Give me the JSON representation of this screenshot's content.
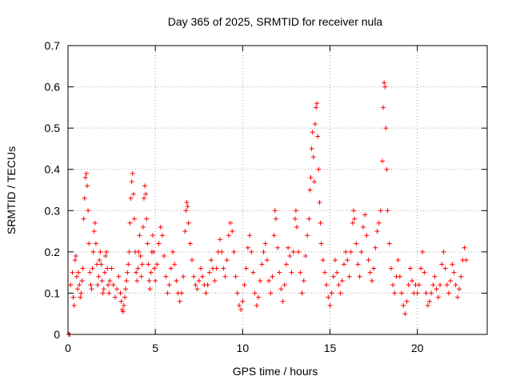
{
  "chart_data": {
    "type": "scatter",
    "title": "Day 365 of 2025, SRMTID for receiver nula",
    "xlabel": "GPS time / hours",
    "ylabel": "SRMTID / TECUs",
    "xlim": [
      0,
      24
    ],
    "ylim": [
      0,
      0.7
    ],
    "xticks": [
      0,
      5,
      10,
      15,
      20
    ],
    "yticks": [
      0,
      0.1,
      0.2,
      0.3,
      0.4,
      0.5,
      0.6,
      0.7
    ],
    "xtick_labels": [
      "0",
      "5",
      "10",
      "15",
      "20"
    ],
    "ytick_labels": [
      "0",
      "0.1",
      "0.2",
      "0.3",
      "0.4",
      "0.5",
      "0.6",
      "0.7"
    ],
    "grid": true,
    "marker": "+",
    "color": "#ff0000",
    "series": [
      {
        "name": "SRMTID",
        "points": [
          [
            0.05,
            0.0
          ],
          [
            0.1,
            0.0
          ],
          [
            0.15,
            0.12
          ],
          [
            0.25,
            0.15
          ],
          [
            0.3,
            0.09
          ],
          [
            0.35,
            0.07
          ],
          [
            0.4,
            0.18
          ],
          [
            0.45,
            0.19
          ],
          [
            0.5,
            0.14
          ],
          [
            0.55,
            0.11
          ],
          [
            0.6,
            0.15
          ],
          [
            0.65,
            0.12
          ],
          [
            0.7,
            0.09
          ],
          [
            0.75,
            0.1
          ],
          [
            0.8,
            0.13
          ],
          [
            0.85,
            0.16
          ],
          [
            0.9,
            0.28
          ],
          [
            0.95,
            0.33
          ],
          [
            1.0,
            0.38
          ],
          [
            1.05,
            0.39
          ],
          [
            1.1,
            0.36
          ],
          [
            1.15,
            0.3
          ],
          [
            1.2,
            0.22
          ],
          [
            1.25,
            0.15
          ],
          [
            1.3,
            0.12
          ],
          [
            1.35,
            0.11
          ],
          [
            1.4,
            0.16
          ],
          [
            1.45,
            0.2
          ],
          [
            1.5,
            0.25
          ],
          [
            1.55,
            0.27
          ],
          [
            1.6,
            0.22
          ],
          [
            1.65,
            0.17
          ],
          [
            1.7,
            0.12
          ],
          [
            1.75,
            0.14
          ],
          [
            1.8,
            0.18
          ],
          [
            1.85,
            0.2
          ],
          [
            1.9,
            0.17
          ],
          [
            1.95,
            0.13
          ],
          [
            2.0,
            0.1
          ],
          [
            2.05,
            0.11
          ],
          [
            2.1,
            0.15
          ],
          [
            2.15,
            0.19
          ],
          [
            2.2,
            0.2
          ],
          [
            2.25,
            0.16
          ],
          [
            2.3,
            0.12
          ],
          [
            2.35,
            0.1
          ],
          [
            2.4,
            0.13
          ],
          [
            2.5,
            0.16
          ],
          [
            2.6,
            0.12
          ],
          [
            2.7,
            0.09
          ],
          [
            2.8,
            0.11
          ],
          [
            2.9,
            0.14
          ],
          [
            3.0,
            0.1
          ],
          [
            3.05,
            0.08
          ],
          [
            3.1,
            0.06
          ],
          [
            3.15,
            0.055
          ],
          [
            3.2,
            0.07
          ],
          [
            3.25,
            0.09
          ],
          [
            3.3,
            0.11
          ],
          [
            3.35,
            0.13
          ],
          [
            3.4,
            0.15
          ],
          [
            3.45,
            0.17
          ],
          [
            3.5,
            0.2
          ],
          [
            3.55,
            0.27
          ],
          [
            3.6,
            0.33
          ],
          [
            3.65,
            0.37
          ],
          [
            3.7,
            0.39
          ],
          [
            3.75,
            0.34
          ],
          [
            3.8,
            0.28
          ],
          [
            3.85,
            0.2
          ],
          [
            3.9,
            0.15
          ],
          [
            3.95,
            0.13
          ],
          [
            4.0,
            0.16
          ],
          [
            4.05,
            0.2
          ],
          [
            4.1,
            0.24
          ],
          [
            4.15,
            0.19
          ],
          [
            4.2,
            0.14
          ],
          [
            4.25,
            0.17
          ],
          [
            4.3,
            0.26
          ],
          [
            4.35,
            0.33
          ],
          [
            4.4,
            0.36
          ],
          [
            4.45,
            0.34
          ],
          [
            4.5,
            0.28
          ],
          [
            4.55,
            0.22
          ],
          [
            4.6,
            0.17
          ],
          [
            4.65,
            0.13
          ],
          [
            4.7,
            0.11
          ],
          [
            4.75,
            0.15
          ],
          [
            4.8,
            0.2
          ],
          [
            4.85,
            0.24
          ],
          [
            4.9,
            0.2
          ],
          [
            4.95,
            0.16
          ],
          [
            5.0,
            0.13
          ],
          [
            5.1,
            0.17
          ],
          [
            5.2,
            0.22
          ],
          [
            5.3,
            0.26
          ],
          [
            5.4,
            0.24
          ],
          [
            5.5,
            0.19
          ],
          [
            5.6,
            0.14
          ],
          [
            5.7,
            0.1
          ],
          [
            5.8,
            0.12
          ],
          [
            5.9,
            0.16
          ],
          [
            6.0,
            0.2
          ],
          [
            6.1,
            0.17
          ],
          [
            6.2,
            0.13
          ],
          [
            6.3,
            0.1
          ],
          [
            6.4,
            0.08
          ],
          [
            6.5,
            0.1
          ],
          [
            6.6,
            0.14
          ],
          [
            6.7,
            0.25
          ],
          [
            6.75,
            0.3
          ],
          [
            6.8,
            0.32
          ],
          [
            6.85,
            0.31
          ],
          [
            6.9,
            0.27
          ],
          [
            7.0,
            0.22
          ],
          [
            7.1,
            0.18
          ],
          [
            7.2,
            0.14
          ],
          [
            7.3,
            0.12
          ],
          [
            7.4,
            0.11
          ],
          [
            7.5,
            0.13
          ],
          [
            7.6,
            0.16
          ],
          [
            7.7,
            0.14
          ],
          [
            7.8,
            0.12
          ],
          [
            7.9,
            0.1
          ],
          [
            8.0,
            0.12
          ],
          [
            8.1,
            0.15
          ],
          [
            8.2,
            0.18
          ],
          [
            8.3,
            0.16
          ],
          [
            8.4,
            0.13
          ],
          [
            8.5,
            0.16
          ],
          [
            8.6,
            0.2
          ],
          [
            8.7,
            0.23
          ],
          [
            8.8,
            0.2
          ],
          [
            8.9,
            0.16
          ],
          [
            9.0,
            0.14
          ],
          [
            9.1,
            0.18
          ],
          [
            9.2,
            0.24
          ],
          [
            9.3,
            0.27
          ],
          [
            9.4,
            0.25
          ],
          [
            9.5,
            0.2
          ],
          [
            9.6,
            0.14
          ],
          [
            9.7,
            0.1
          ],
          [
            9.8,
            0.07
          ],
          [
            9.9,
            0.06
          ],
          [
            10.0,
            0.08
          ],
          [
            10.1,
            0.12
          ],
          [
            10.2,
            0.16
          ],
          [
            10.3,
            0.21
          ],
          [
            10.4,
            0.24
          ],
          [
            10.5,
            0.2
          ],
          [
            10.6,
            0.15
          ],
          [
            10.7,
            0.1
          ],
          [
            10.8,
            0.07
          ],
          [
            10.9,
            0.09
          ],
          [
            11.0,
            0.13
          ],
          [
            11.1,
            0.17
          ],
          [
            11.2,
            0.2
          ],
          [
            11.3,
            0.22
          ],
          [
            11.4,
            0.18
          ],
          [
            11.5,
            0.13
          ],
          [
            11.6,
            0.1
          ],
          [
            11.7,
            0.14
          ],
          [
            11.8,
            0.24
          ],
          [
            11.85,
            0.3
          ],
          [
            11.9,
            0.28
          ],
          [
            12.0,
            0.21
          ],
          [
            12.1,
            0.15
          ],
          [
            12.2,
            0.11
          ],
          [
            12.3,
            0.08
          ],
          [
            12.4,
            0.12
          ],
          [
            12.5,
            0.17
          ],
          [
            12.6,
            0.21
          ],
          [
            12.7,
            0.19
          ],
          [
            12.8,
            0.15
          ],
          [
            12.9,
            0.2
          ],
          [
            13.0,
            0.28
          ],
          [
            13.05,
            0.3
          ],
          [
            13.1,
            0.26
          ],
          [
            13.2,
            0.2
          ],
          [
            13.3,
            0.15
          ],
          [
            13.4,
            0.1
          ],
          [
            13.5,
            0.13
          ],
          [
            13.6,
            0.19
          ],
          [
            13.7,
            0.24
          ],
          [
            13.8,
            0.28
          ],
          [
            13.85,
            0.35
          ],
          [
            13.9,
            0.38
          ],
          [
            13.95,
            0.45
          ],
          [
            14.0,
            0.49
          ],
          [
            14.05,
            0.43
          ],
          [
            14.1,
            0.37
          ],
          [
            14.15,
            0.51
          ],
          [
            14.2,
            0.55
          ],
          [
            14.25,
            0.56
          ],
          [
            14.3,
            0.48
          ],
          [
            14.35,
            0.4
          ],
          [
            14.4,
            0.32
          ],
          [
            14.45,
            0.27
          ],
          [
            14.5,
            0.22
          ],
          [
            14.6,
            0.18
          ],
          [
            14.7,
            0.15
          ],
          [
            14.8,
            0.12
          ],
          [
            14.9,
            0.09
          ],
          [
            15.0,
            0.07
          ],
          [
            15.1,
            0.1
          ],
          [
            15.2,
            0.14
          ],
          [
            15.3,
            0.18
          ],
          [
            15.4,
            0.15
          ],
          [
            15.5,
            0.12
          ],
          [
            15.6,
            0.1
          ],
          [
            15.7,
            0.13
          ],
          [
            15.8,
            0.17
          ],
          [
            15.9,
            0.2
          ],
          [
            16.0,
            0.18
          ],
          [
            16.1,
            0.14
          ],
          [
            16.2,
            0.2
          ],
          [
            16.3,
            0.27
          ],
          [
            16.35,
            0.3
          ],
          [
            16.4,
            0.28
          ],
          [
            16.5,
            0.22
          ],
          [
            16.6,
            0.17
          ],
          [
            16.7,
            0.14
          ],
          [
            16.8,
            0.2
          ],
          [
            16.9,
            0.26
          ],
          [
            17.0,
            0.29
          ],
          [
            17.1,
            0.24
          ],
          [
            17.2,
            0.18
          ],
          [
            17.3,
            0.15
          ],
          [
            17.4,
            0.13
          ],
          [
            17.5,
            0.16
          ],
          [
            17.6,
            0.21
          ],
          [
            17.7,
            0.25
          ],
          [
            17.8,
            0.27
          ],
          [
            17.9,
            0.3
          ],
          [
            18.0,
            0.42
          ],
          [
            18.05,
            0.55
          ],
          [
            18.1,
            0.61
          ],
          [
            18.15,
            0.6
          ],
          [
            18.2,
            0.5
          ],
          [
            18.25,
            0.4
          ],
          [
            18.3,
            0.3
          ],
          [
            18.4,
            0.22
          ],
          [
            18.5,
            0.16
          ],
          [
            18.6,
            0.12
          ],
          [
            18.7,
            0.1
          ],
          [
            18.8,
            0.14
          ],
          [
            18.9,
            0.18
          ],
          [
            19.0,
            0.14
          ],
          [
            19.1,
            0.1
          ],
          [
            19.2,
            0.07
          ],
          [
            19.3,
            0.05
          ],
          [
            19.4,
            0.08
          ],
          [
            19.5,
            0.12
          ],
          [
            19.6,
            0.16
          ],
          [
            19.7,
            0.13
          ],
          [
            19.8,
            0.1
          ],
          [
            19.9,
            0.12
          ],
          [
            20.0,
            0.1
          ],
          [
            20.1,
            0.12
          ],
          [
            20.2,
            0.16
          ],
          [
            20.3,
            0.2
          ],
          [
            20.4,
            0.15
          ],
          [
            20.5,
            0.1
          ],
          [
            20.6,
            0.07
          ],
          [
            20.7,
            0.08
          ],
          [
            20.8,
            0.1
          ],
          [
            20.9,
            0.12
          ],
          [
            21.0,
            0.14
          ],
          [
            21.1,
            0.11
          ],
          [
            21.2,
            0.09
          ],
          [
            21.3,
            0.12
          ],
          [
            21.4,
            0.17
          ],
          [
            21.5,
            0.2
          ],
          [
            21.6,
            0.16
          ],
          [
            21.7,
            0.12
          ],
          [
            21.8,
            0.1
          ],
          [
            21.9,
            0.13
          ],
          [
            22.0,
            0.17
          ],
          [
            22.1,
            0.15
          ],
          [
            22.2,
            0.12
          ],
          [
            22.3,
            0.09
          ],
          [
            22.4,
            0.11
          ],
          [
            22.5,
            0.14
          ],
          [
            22.6,
            0.18
          ],
          [
            22.7,
            0.21
          ],
          [
            22.8,
            0.18
          ]
        ]
      }
    ]
  }
}
